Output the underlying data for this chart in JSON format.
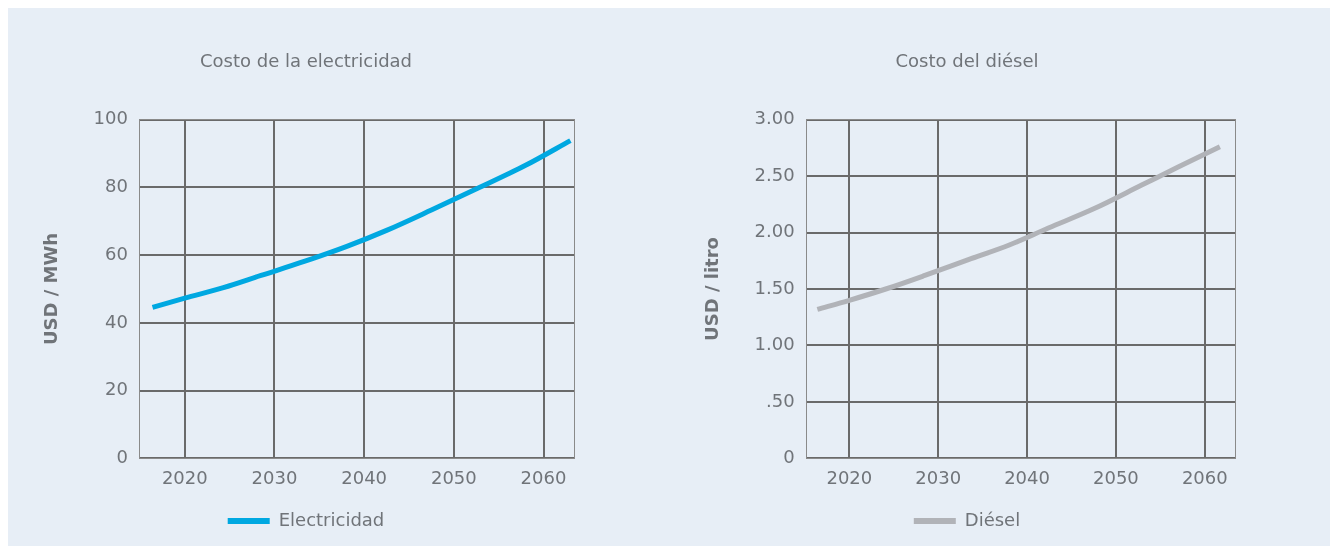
{
  "chart_data": [
    {
      "type": "line",
      "title": "Costo de la electricidad",
      "ylabel": "USD / MWh",
      "x": [
        2016.4,
        2020,
        2024.3,
        2028.5,
        2033.4,
        2038,
        2042.5,
        2047.5,
        2052.9,
        2058,
        2063
      ],
      "series": [
        {
          "name": "Electricidad",
          "color": "#00a8e1",
          "values": [
            44.6,
            47.3,
            50.4,
            54,
            58.2,
            62.5,
            67.3,
            73.3,
            80,
            86.5,
            93.8
          ]
        }
      ],
      "xlim": [
        2015,
        2063.4
      ],
      "xticks": [
        2020,
        2030,
        2040,
        2050,
        2060
      ],
      "ylim": [
        0,
        100
      ],
      "yticks": [
        0,
        20,
        40,
        60,
        80,
        100
      ],
      "grid": true,
      "legend": "bottom",
      "marker": "none",
      "line_style": "solid"
    },
    {
      "type": "line",
      "title": "Costo del diésel",
      "ylabel": "USD / litro",
      "x": [
        2016.4,
        2020,
        2024.1,
        2028.5,
        2033.4,
        2038,
        2042.4,
        2047.5,
        2052.9,
        2057,
        2061.7
      ],
      "series": [
        {
          "name": "Diésel",
          "color": "#b1b3b8",
          "values": [
            1.32,
            1.4,
            1.5,
            1.62,
            1.76,
            1.89,
            2.04,
            2.21,
            2.42,
            2.58,
            2.76
          ]
        }
      ],
      "xlim": [
        2015.2,
        2063.4
      ],
      "xticks": [
        2020,
        2030,
        2040,
        2050,
        2060
      ],
      "ylim": [
        0,
        3
      ],
      "yticks": [
        0,
        {
          "value": 0.5,
          "label": ".50"
        },
        {
          "value": 1,
          "label": "1.00"
        },
        {
          "value": 1.5,
          "label": "1.50"
        },
        {
          "value": 2,
          "label": "2.00"
        },
        {
          "value": 2.5,
          "label": "2.50"
        },
        {
          "value": 3,
          "label": "3.00"
        }
      ],
      "grid": true,
      "legend": "bottom",
      "marker": "none",
      "line_style": "solid"
    }
  ]
}
